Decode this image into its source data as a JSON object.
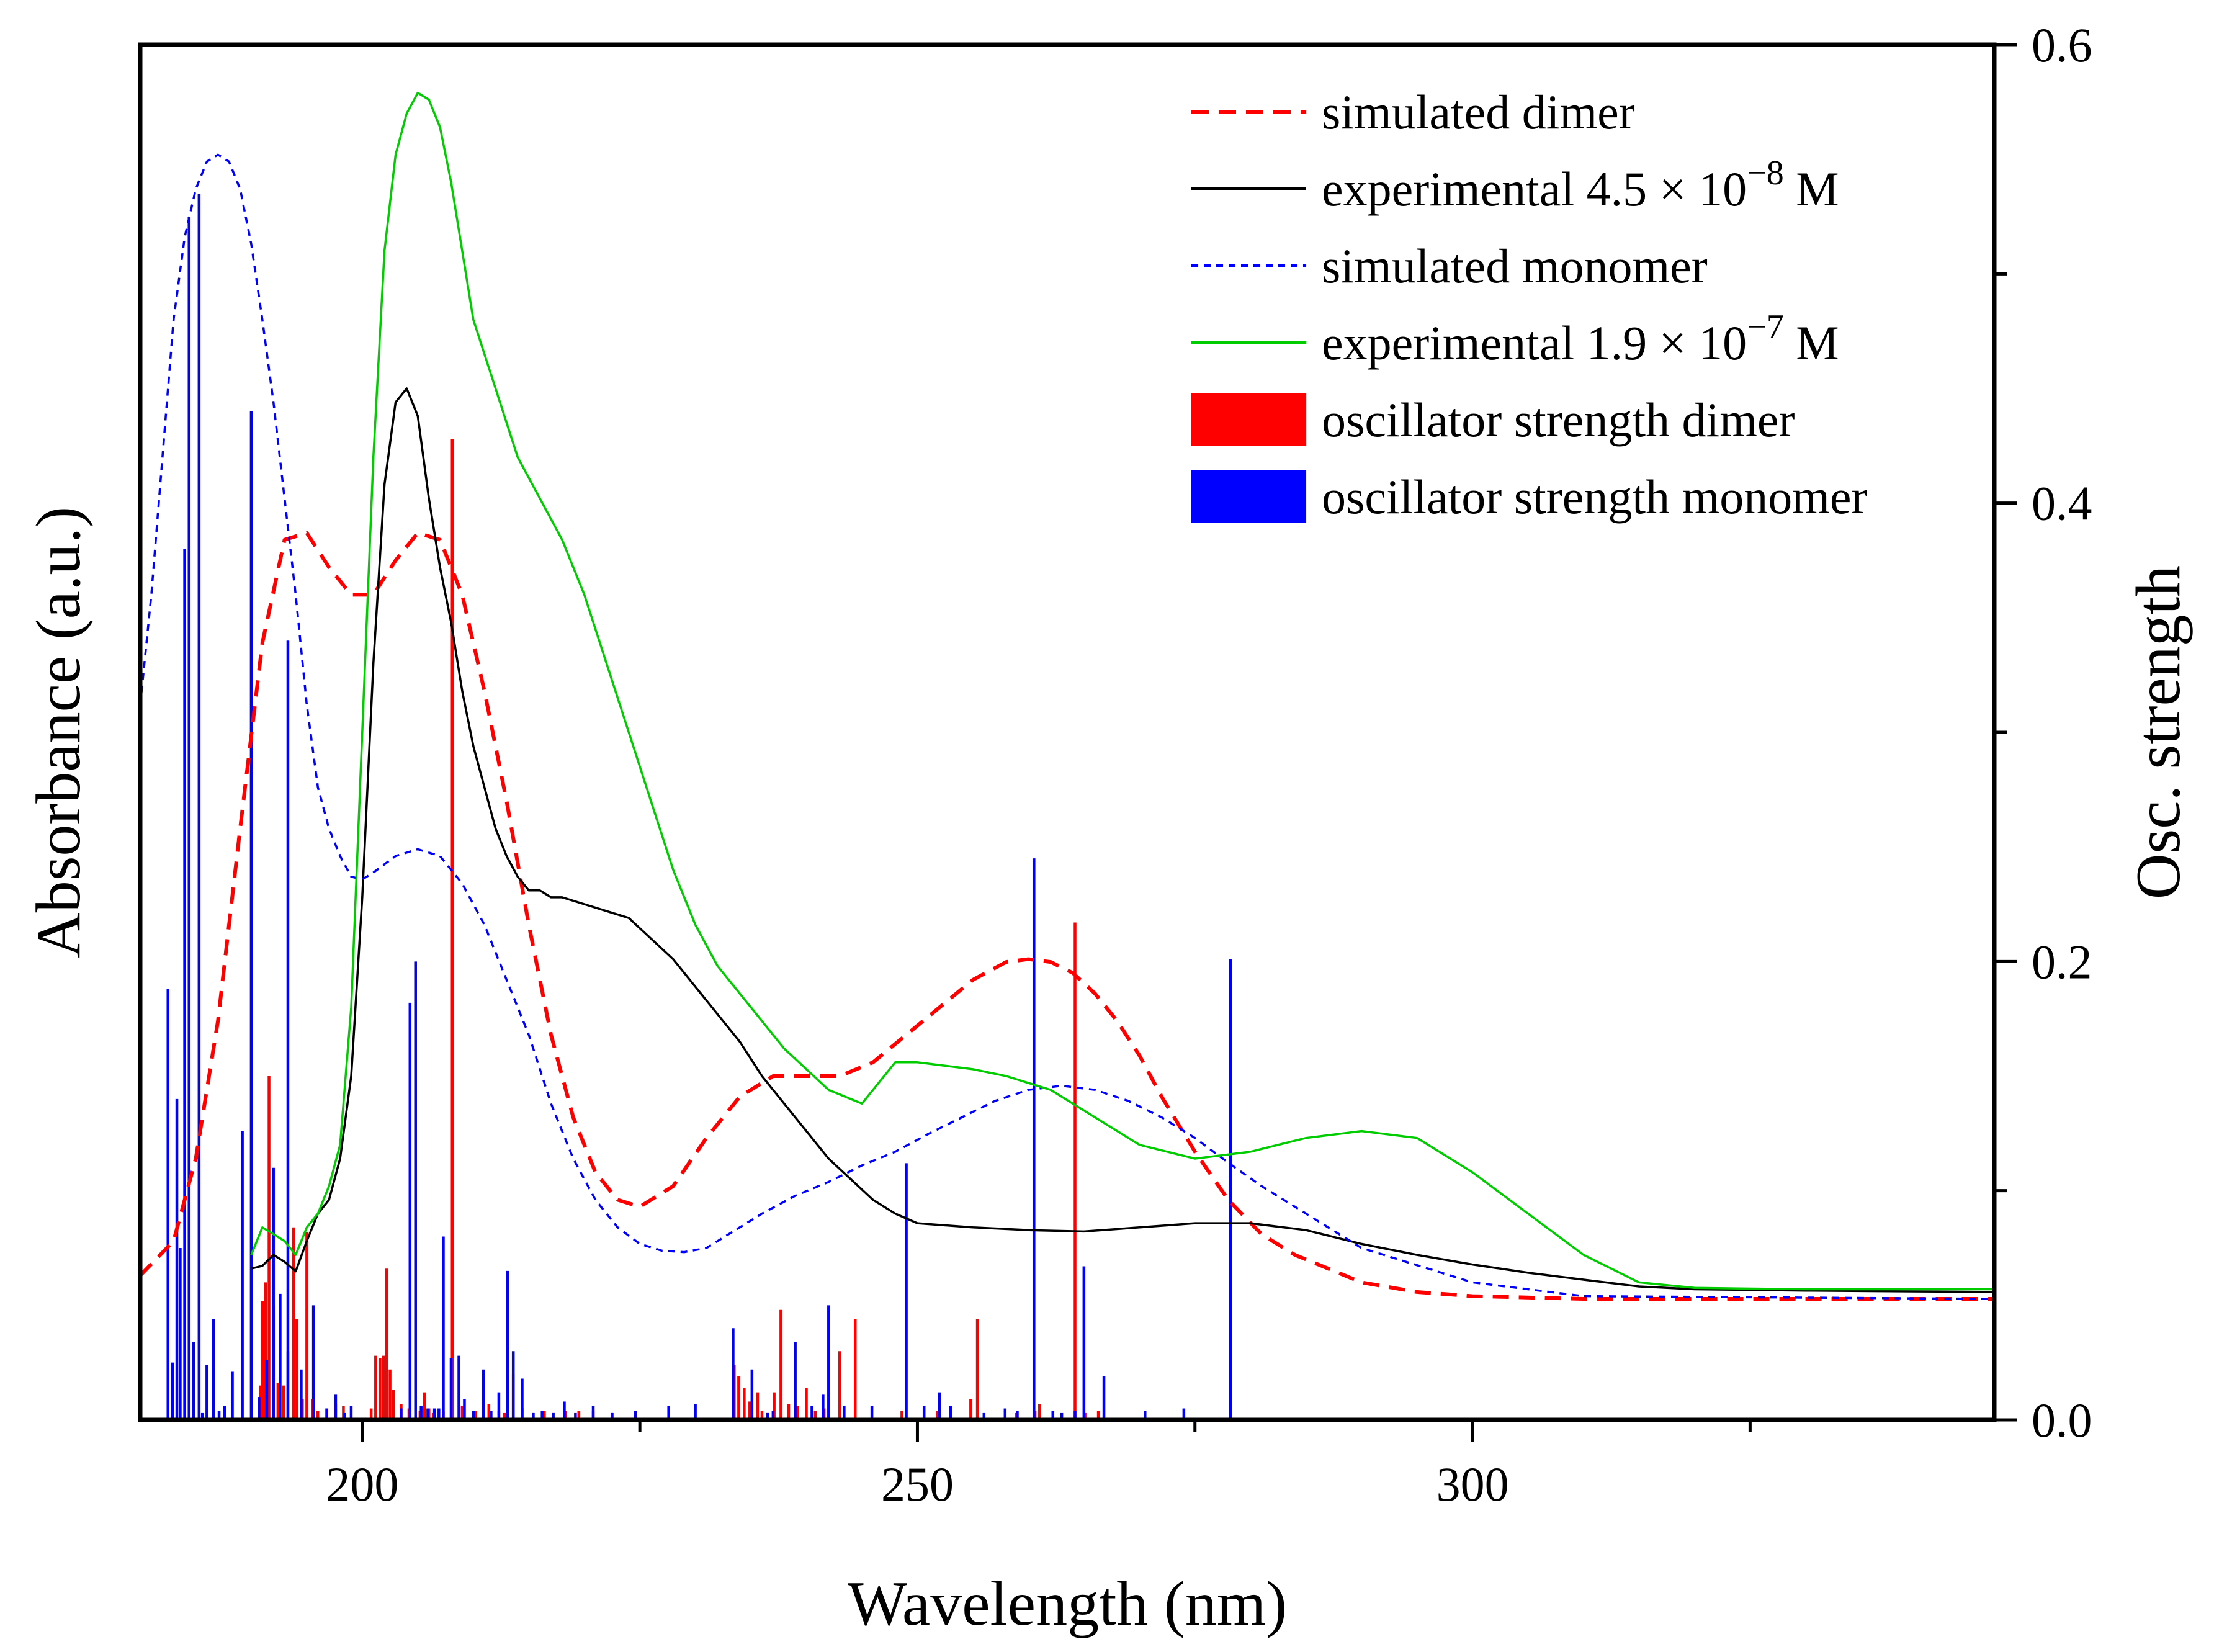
{
  "chart_data": {
    "type": "line",
    "title": "",
    "xlabel": "Wavelength (nm)",
    "ylabel_left": "Absorbance (a.u.)",
    "ylabel_right": "Osc. strength",
    "xlim": [
      180,
      347
    ],
    "ylim_left": [
      0,
      1
    ],
    "ylim_right": [
      0,
      0.6
    ],
    "x_ticks": [
      200,
      250,
      300
    ],
    "x_minor_ticks": [
      225,
      275,
      325
    ],
    "y_right_ticks": [
      "0.0",
      "0.2",
      "0.4",
      "0.6"
    ],
    "y_right_tick_values": [
      0,
      0.2,
      0.4,
      0.6
    ],
    "y_right_minor_ticks": [
      0.1,
      0.3,
      0.5
    ],
    "legend_position": "top-right",
    "series": [
      {
        "name": "simulated dimer",
        "legend_label": "simulated dimer",
        "kind": "line",
        "axis": "left",
        "color": "#ff0000",
        "style": "dashed",
        "x": [
          180,
          183,
          185,
          187,
          189,
          191,
          193,
          195,
          197,
          199,
          201,
          203,
          205,
          207,
          209,
          211,
          213,
          215,
          217,
          219,
          221,
          223,
          225,
          228,
          231,
          234,
          237,
          240,
          243,
          246,
          249,
          252,
          255,
          258,
          260,
          262,
          264,
          266,
          268,
          270,
          272,
          275,
          278,
          281,
          284,
          287,
          290,
          295,
          300,
          310,
          320,
          347
        ],
        "y": [
          0.105,
          0.13,
          0.19,
          0.29,
          0.43,
          0.565,
          0.64,
          0.645,
          0.62,
          0.6,
          0.6,
          0.625,
          0.645,
          0.64,
          0.6,
          0.53,
          0.45,
          0.36,
          0.28,
          0.22,
          0.18,
          0.16,
          0.155,
          0.17,
          0.205,
          0.235,
          0.25,
          0.25,
          0.25,
          0.26,
          0.28,
          0.3,
          0.32,
          0.333,
          0.335,
          0.333,
          0.325,
          0.31,
          0.29,
          0.265,
          0.235,
          0.195,
          0.16,
          0.135,
          0.12,
          0.11,
          0.1,
          0.093,
          0.09,
          0.088,
          0.088,
          0.088
        ]
      },
      {
        "name": "experimental 4.5 × 10−8 M",
        "legend_label": "experimental 4.5 × 10",
        "legend_exp": "−8",
        "legend_unit": "M",
        "kind": "line",
        "axis": "left",
        "color": "#000000",
        "style": "solid",
        "x": [
          190,
          191,
          192,
          193,
          194,
          195,
          196,
          197,
          198,
          199,
          200,
          201,
          202,
          203,
          204,
          205,
          206,
          207,
          208,
          209,
          210,
          211,
          212,
          213,
          214,
          215,
          216,
          217,
          218,
          220,
          222,
          224,
          226,
          228,
          230,
          232,
          234,
          236,
          238,
          240,
          242,
          244,
          246,
          248,
          250,
          255,
          260,
          265,
          270,
          275,
          280,
          285,
          290,
          295,
          300,
          305,
          310,
          315,
          320,
          330,
          347
        ],
        "y": [
          0.11,
          0.112,
          0.12,
          0.115,
          0.108,
          0.13,
          0.15,
          0.16,
          0.19,
          0.25,
          0.38,
          0.55,
          0.68,
          0.74,
          0.75,
          0.73,
          0.67,
          0.62,
          0.58,
          0.53,
          0.49,
          0.46,
          0.43,
          0.41,
          0.395,
          0.385,
          0.385,
          0.38,
          0.38,
          0.375,
          0.37,
          0.365,
          0.35,
          0.335,
          0.315,
          0.295,
          0.275,
          0.25,
          0.23,
          0.21,
          0.19,
          0.175,
          0.16,
          0.15,
          0.143,
          0.14,
          0.138,
          0.137,
          0.14,
          0.143,
          0.143,
          0.138,
          0.128,
          0.12,
          0.113,
          0.107,
          0.102,
          0.097,
          0.095,
          0.094,
          0.093
        ]
      },
      {
        "name": "simulated monomer",
        "legend_label": "simulated monomer",
        "kind": "line",
        "axis": "left",
        "color": "#0000ff",
        "style": "dotted",
        "x": [
          180,
          181,
          182,
          183,
          184,
          185,
          186,
          187,
          188,
          189,
          190,
          191,
          192,
          193,
          194,
          195,
          196,
          197,
          198,
          199,
          200,
          201,
          203,
          205,
          207,
          209,
          211,
          213,
          215,
          217,
          219,
          221,
          223,
          225,
          227,
          229,
          231,
          233,
          236,
          239,
          242,
          245,
          248,
          251,
          254,
          257,
          260,
          263,
          266,
          269,
          272,
          275,
          278,
          281,
          285,
          290,
          300,
          310,
          347
        ],
        "y": [
          0.52,
          0.6,
          0.7,
          0.8,
          0.86,
          0.895,
          0.915,
          0.92,
          0.915,
          0.895,
          0.855,
          0.8,
          0.74,
          0.67,
          0.6,
          0.52,
          0.46,
          0.43,
          0.41,
          0.395,
          0.393,
          0.398,
          0.41,
          0.415,
          0.41,
          0.39,
          0.36,
          0.32,
          0.28,
          0.23,
          0.19,
          0.16,
          0.14,
          0.128,
          0.123,
          0.122,
          0.125,
          0.135,
          0.15,
          0.163,
          0.173,
          0.185,
          0.195,
          0.208,
          0.22,
          0.232,
          0.24,
          0.243,
          0.24,
          0.232,
          0.22,
          0.205,
          0.187,
          0.17,
          0.15,
          0.125,
          0.1,
          0.09,
          0.088
        ]
      },
      {
        "name": "experimental 1.9 × 10−7 M",
        "legend_label": "experimental 1.9 × 10",
        "legend_exp": "−7",
        "legend_unit": "M",
        "kind": "line",
        "axis": "left",
        "color": "#00cc00",
        "style": "solid",
        "x": [
          190,
          191,
          192,
          193,
          194,
          195,
          196,
          197,
          198,
          199,
          200,
          201,
          202,
          203,
          204,
          205,
          206,
          207,
          208,
          209,
          210,
          212,
          214,
          216,
          218,
          220,
          222,
          224,
          226,
          228,
          230,
          232,
          234,
          236,
          238,
          240,
          242,
          245,
          248,
          250,
          255,
          258,
          262,
          266,
          270,
          275,
          280,
          285,
          290,
          295,
          300,
          305,
          310,
          315,
          320,
          330,
          347
        ],
        "y": [
          0.12,
          0.14,
          0.135,
          0.13,
          0.12,
          0.14,
          0.15,
          0.17,
          0.2,
          0.3,
          0.5,
          0.7,
          0.85,
          0.92,
          0.95,
          0.965,
          0.96,
          0.94,
          0.9,
          0.85,
          0.8,
          0.75,
          0.7,
          0.67,
          0.64,
          0.6,
          0.55,
          0.5,
          0.45,
          0.4,
          0.36,
          0.33,
          0.31,
          0.29,
          0.27,
          0.255,
          0.24,
          0.23,
          0.26,
          0.26,
          0.255,
          0.25,
          0.24,
          0.22,
          0.2,
          0.19,
          0.195,
          0.205,
          0.21,
          0.205,
          0.18,
          0.15,
          0.12,
          0.1,
          0.096,
          0.095,
          0.095
        ]
      },
      {
        "name": "oscillator strength dimer",
        "legend_label": "oscillator strength dimer",
        "kind": "stick",
        "axis": "right",
        "color": "#ff0000",
        "x": [
          190.8,
          191.0,
          191.3,
          191.6,
          192.0,
          192.4,
          192.9,
          193.3,
          193.8,
          194.1,
          194.6,
          195.0,
          195.5,
          196.0,
          196.8,
          197.6,
          198.3,
          200.8,
          201.2,
          201.6,
          201.9,
          202.2,
          202.5,
          202.8,
          203.5,
          204.2,
          205.2,
          205.6,
          206.0,
          206.4,
          207.3,
          208.1,
          209.0,
          210.2,
          211.4,
          212.3,
          212.8,
          213.6,
          214.4,
          215.4,
          216.4,
          217.2,
          218.3,
          219.5,
          220.8,
          222.5,
          224.6,
          233.5,
          233.9,
          234.4,
          234.9,
          235.6,
          236.0,
          236.5,
          237.1,
          237.7,
          238.4,
          239.2,
          240.0,
          240.8,
          241.6,
          243.0,
          244.4,
          248.6,
          251.8,
          254.8,
          255.4,
          258.9,
          260.6,
          261.0,
          264.2,
          265.1,
          266.3
        ],
        "y": [
          0.015,
          0.052,
          0.06,
          0.15,
          0.05,
          0.016,
          0.015,
          0.03,
          0.084,
          0.044,
          0.009,
          0.082,
          0.009,
          0.004,
          0.005,
          0.007,
          0.006,
          0.005,
          0.028,
          0.027,
          0.028,
          0.066,
          0.022,
          0.013,
          0.007,
          0.005,
          0.004,
          0.012,
          0.005,
          0.003,
          0.004,
          0.428,
          0.006,
          0.004,
          0.007,
          0.004,
          0.003,
          0.02,
          0.005,
          0.003,
          0.004,
          0.003,
          0.004,
          0.004,
          0.004,
          0.003,
          0.004,
          0.024,
          0.019,
          0.014,
          0.008,
          0.012,
          0.004,
          0.003,
          0.012,
          0.048,
          0.007,
          0.006,
          0.014,
          0.004,
          0.005,
          0.03,
          0.044,
          0.004,
          0.004,
          0.009,
          0.044,
          0.003,
          0.004,
          0.007,
          0.217,
          0.003,
          0.004
        ]
      },
      {
        "name": "oscillator strength monomer",
        "legend_label": "oscillator strength monomer",
        "kind": "stick",
        "axis": "right",
        "color": "#0000ff",
        "x": [
          182.5,
          182.9,
          183.3,
          183.6,
          184.0,
          184.4,
          184.8,
          185.3,
          185.6,
          186.0,
          186.6,
          187.1,
          187.6,
          188.3,
          189.2,
          190.0,
          190.7,
          191.4,
          192.0,
          192.6,
          193.3,
          194.5,
          195.6,
          196.8,
          197.6,
          198.4,
          199.0,
          203.5,
          204.3,
          204.8,
          205.3,
          205.9,
          206.5,
          206.9,
          207.3,
          208.0,
          208.7,
          209.2,
          210.0,
          210.9,
          211.6,
          212.3,
          213.1,
          213.6,
          214.4,
          215.4,
          216.2,
          217.2,
          218.2,
          219.2,
          220.8,
          222.5,
          224.6,
          227.6,
          230.0,
          233.4,
          235.1,
          236.5,
          237.0,
          239.0,
          240.5,
          241.5,
          242.0,
          243.4,
          245.9,
          249.0,
          250.6,
          252.0,
          253.0,
          256.0,
          257.9,
          259.0,
          260.5,
          262.2,
          263.0,
          264.2,
          265.0,
          266.8,
          270.5,
          274.0,
          278.2
        ],
        "y": [
          0.188,
          0.025,
          0.14,
          0.075,
          0.38,
          0.525,
          0.034,
          0.535,
          0.003,
          0.024,
          0.044,
          0.004,
          0.006,
          0.021,
          0.126,
          0.44,
          0.01,
          0.026,
          0.11,
          0.055,
          0.34,
          0.022,
          0.05,
          0.005,
          0.011,
          0.003,
          0.006,
          0.005,
          0.182,
          0.2,
          0.006,
          0.005,
          0.005,
          0.005,
          0.08,
          0.027,
          0.028,
          0.009,
          0.004,
          0.022,
          0.004,
          0.012,
          0.065,
          0.03,
          0.018,
          0.003,
          0.004,
          0.003,
          0.008,
          0.003,
          0.006,
          0.003,
          0.004,
          0.006,
          0.007,
          0.04,
          0.022,
          0.003,
          0.004,
          0.034,
          0.006,
          0.011,
          0.05,
          0.006,
          0.006,
          0.112,
          0.006,
          0.012,
          0.006,
          0.003,
          0.005,
          0.004,
          0.245,
          0.004,
          0.003,
          0.004,
          0.067,
          0.019,
          0.004,
          0.005,
          0.201
        ]
      }
    ]
  }
}
